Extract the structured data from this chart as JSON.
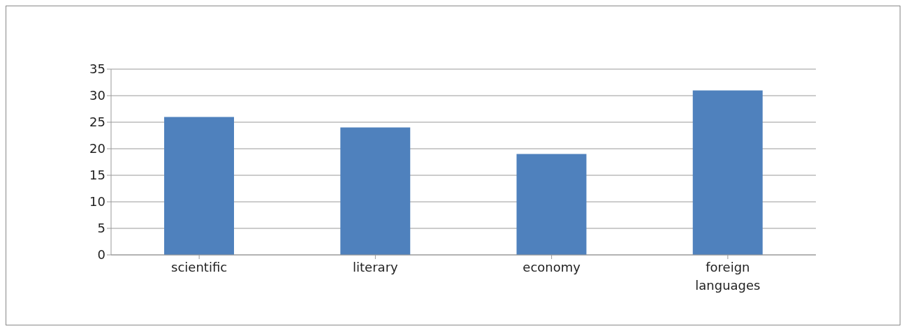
{
  "chart_data": {
    "type": "bar",
    "categories": [
      "scientific",
      "literary",
      "economy",
      "foreign languages"
    ],
    "values": [
      26,
      24,
      19,
      31
    ],
    "color": "#4f81bd",
    "ylim": [
      0,
      35
    ],
    "yticks": [
      0,
      5,
      10,
      15,
      20,
      25,
      30,
      35
    ],
    "grid": "y"
  }
}
